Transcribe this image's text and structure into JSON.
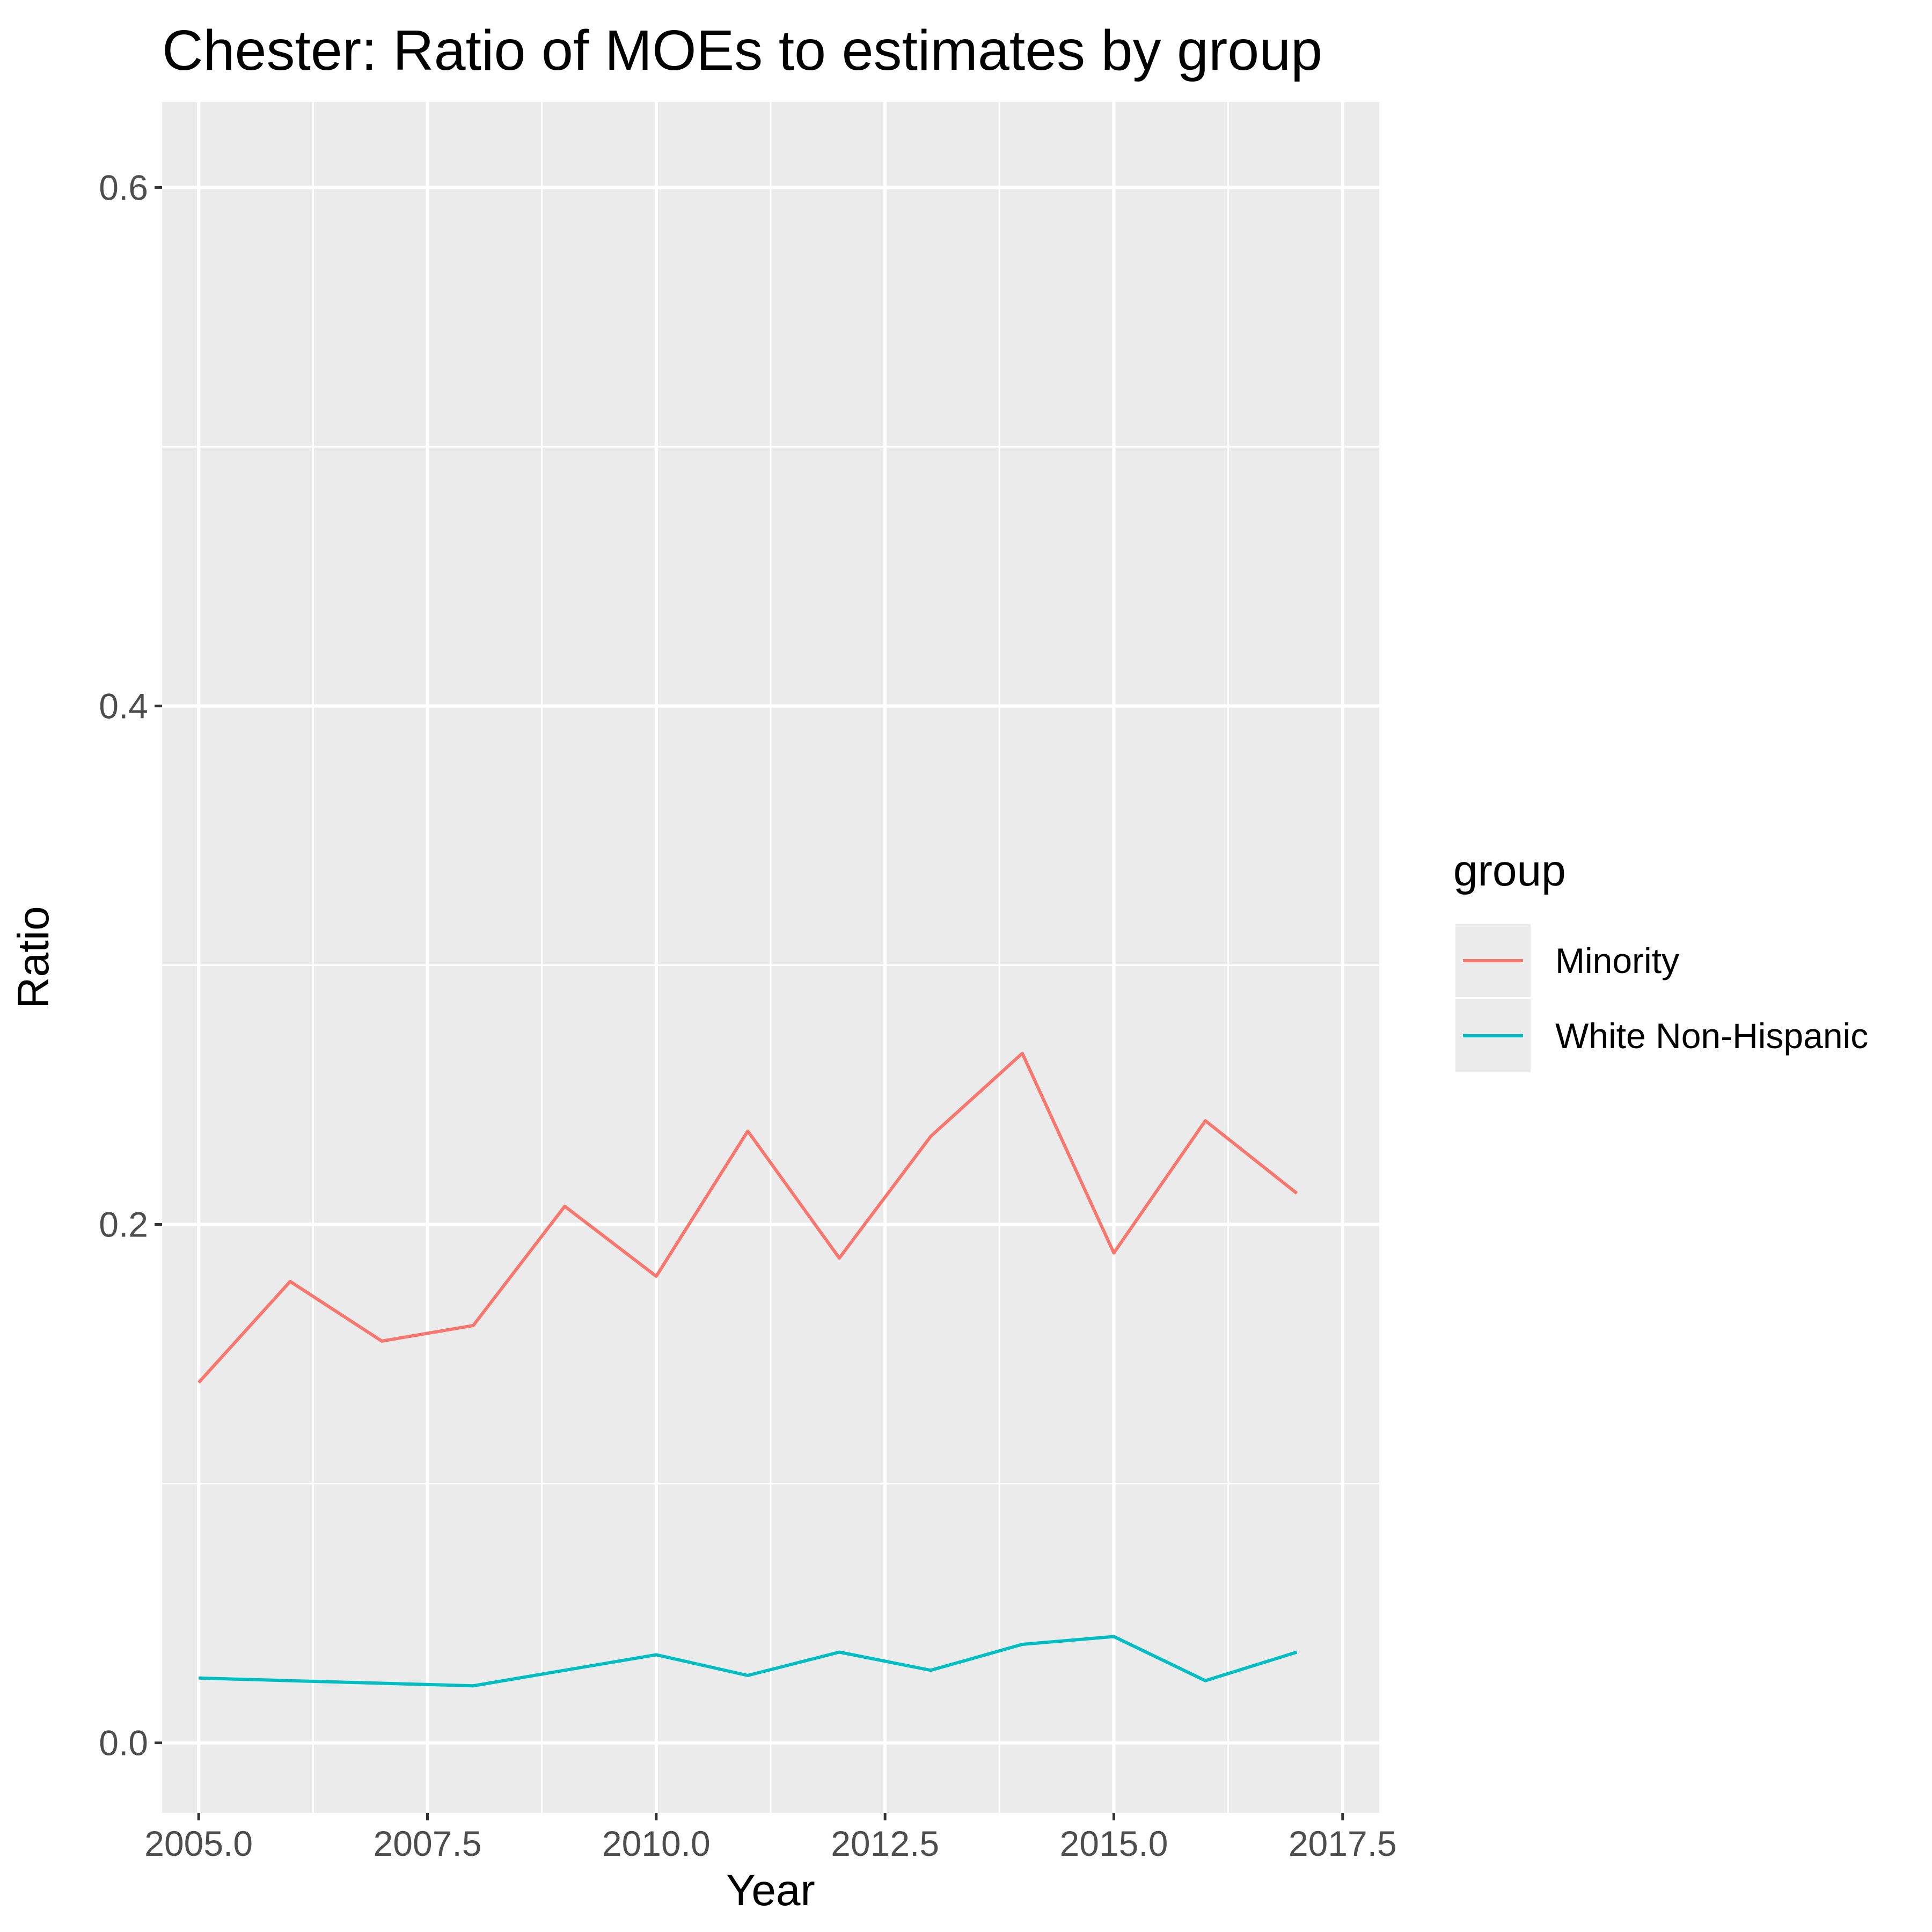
{
  "chart_data": {
    "type": "line",
    "title": "Chester: Ratio of MOEs to estimates by group",
    "xlabel": "Year",
    "ylabel": "Ratio",
    "xlim": [
      2004.6,
      2017.9
    ],
    "ylim": [
      -0.027,
      0.633
    ],
    "x_ticks": [
      2005.0,
      2007.5,
      2010.0,
      2012.5,
      2015.0,
      2017.5
    ],
    "x_tick_labels": [
      "2005.0",
      "2007.5",
      "2010.0",
      "2012.5",
      "2015.0",
      "2017.5"
    ],
    "y_ticks": [
      0.0,
      0.2,
      0.4,
      0.6
    ],
    "y_tick_labels": [
      "0.0",
      "0.2",
      "0.4",
      "0.6"
    ],
    "grid": true,
    "legend": {
      "title": "group",
      "position": "right"
    },
    "x": [
      2005,
      2006,
      2007,
      2008,
      2009,
      2010,
      2011,
      2012,
      2013,
      2014,
      2015,
      2016,
      2017
    ],
    "series": [
      {
        "name": "Minority",
        "color": "#F8766D",
        "values": [
          0.139,
          0.178,
          0.155,
          0.161,
          0.207,
          0.18,
          0.236,
          0.187,
          0.234,
          0.266,
          0.189,
          0.24,
          0.212
        ]
      },
      {
        "name": "White Non-Hispanic",
        "color": "#00BFC4",
        "values": [
          0.025,
          0.024,
          0.023,
          0.022,
          0.028,
          0.034,
          0.026,
          0.035,
          0.028,
          0.038,
          0.041,
          0.024,
          0.035
        ]
      }
    ]
  }
}
